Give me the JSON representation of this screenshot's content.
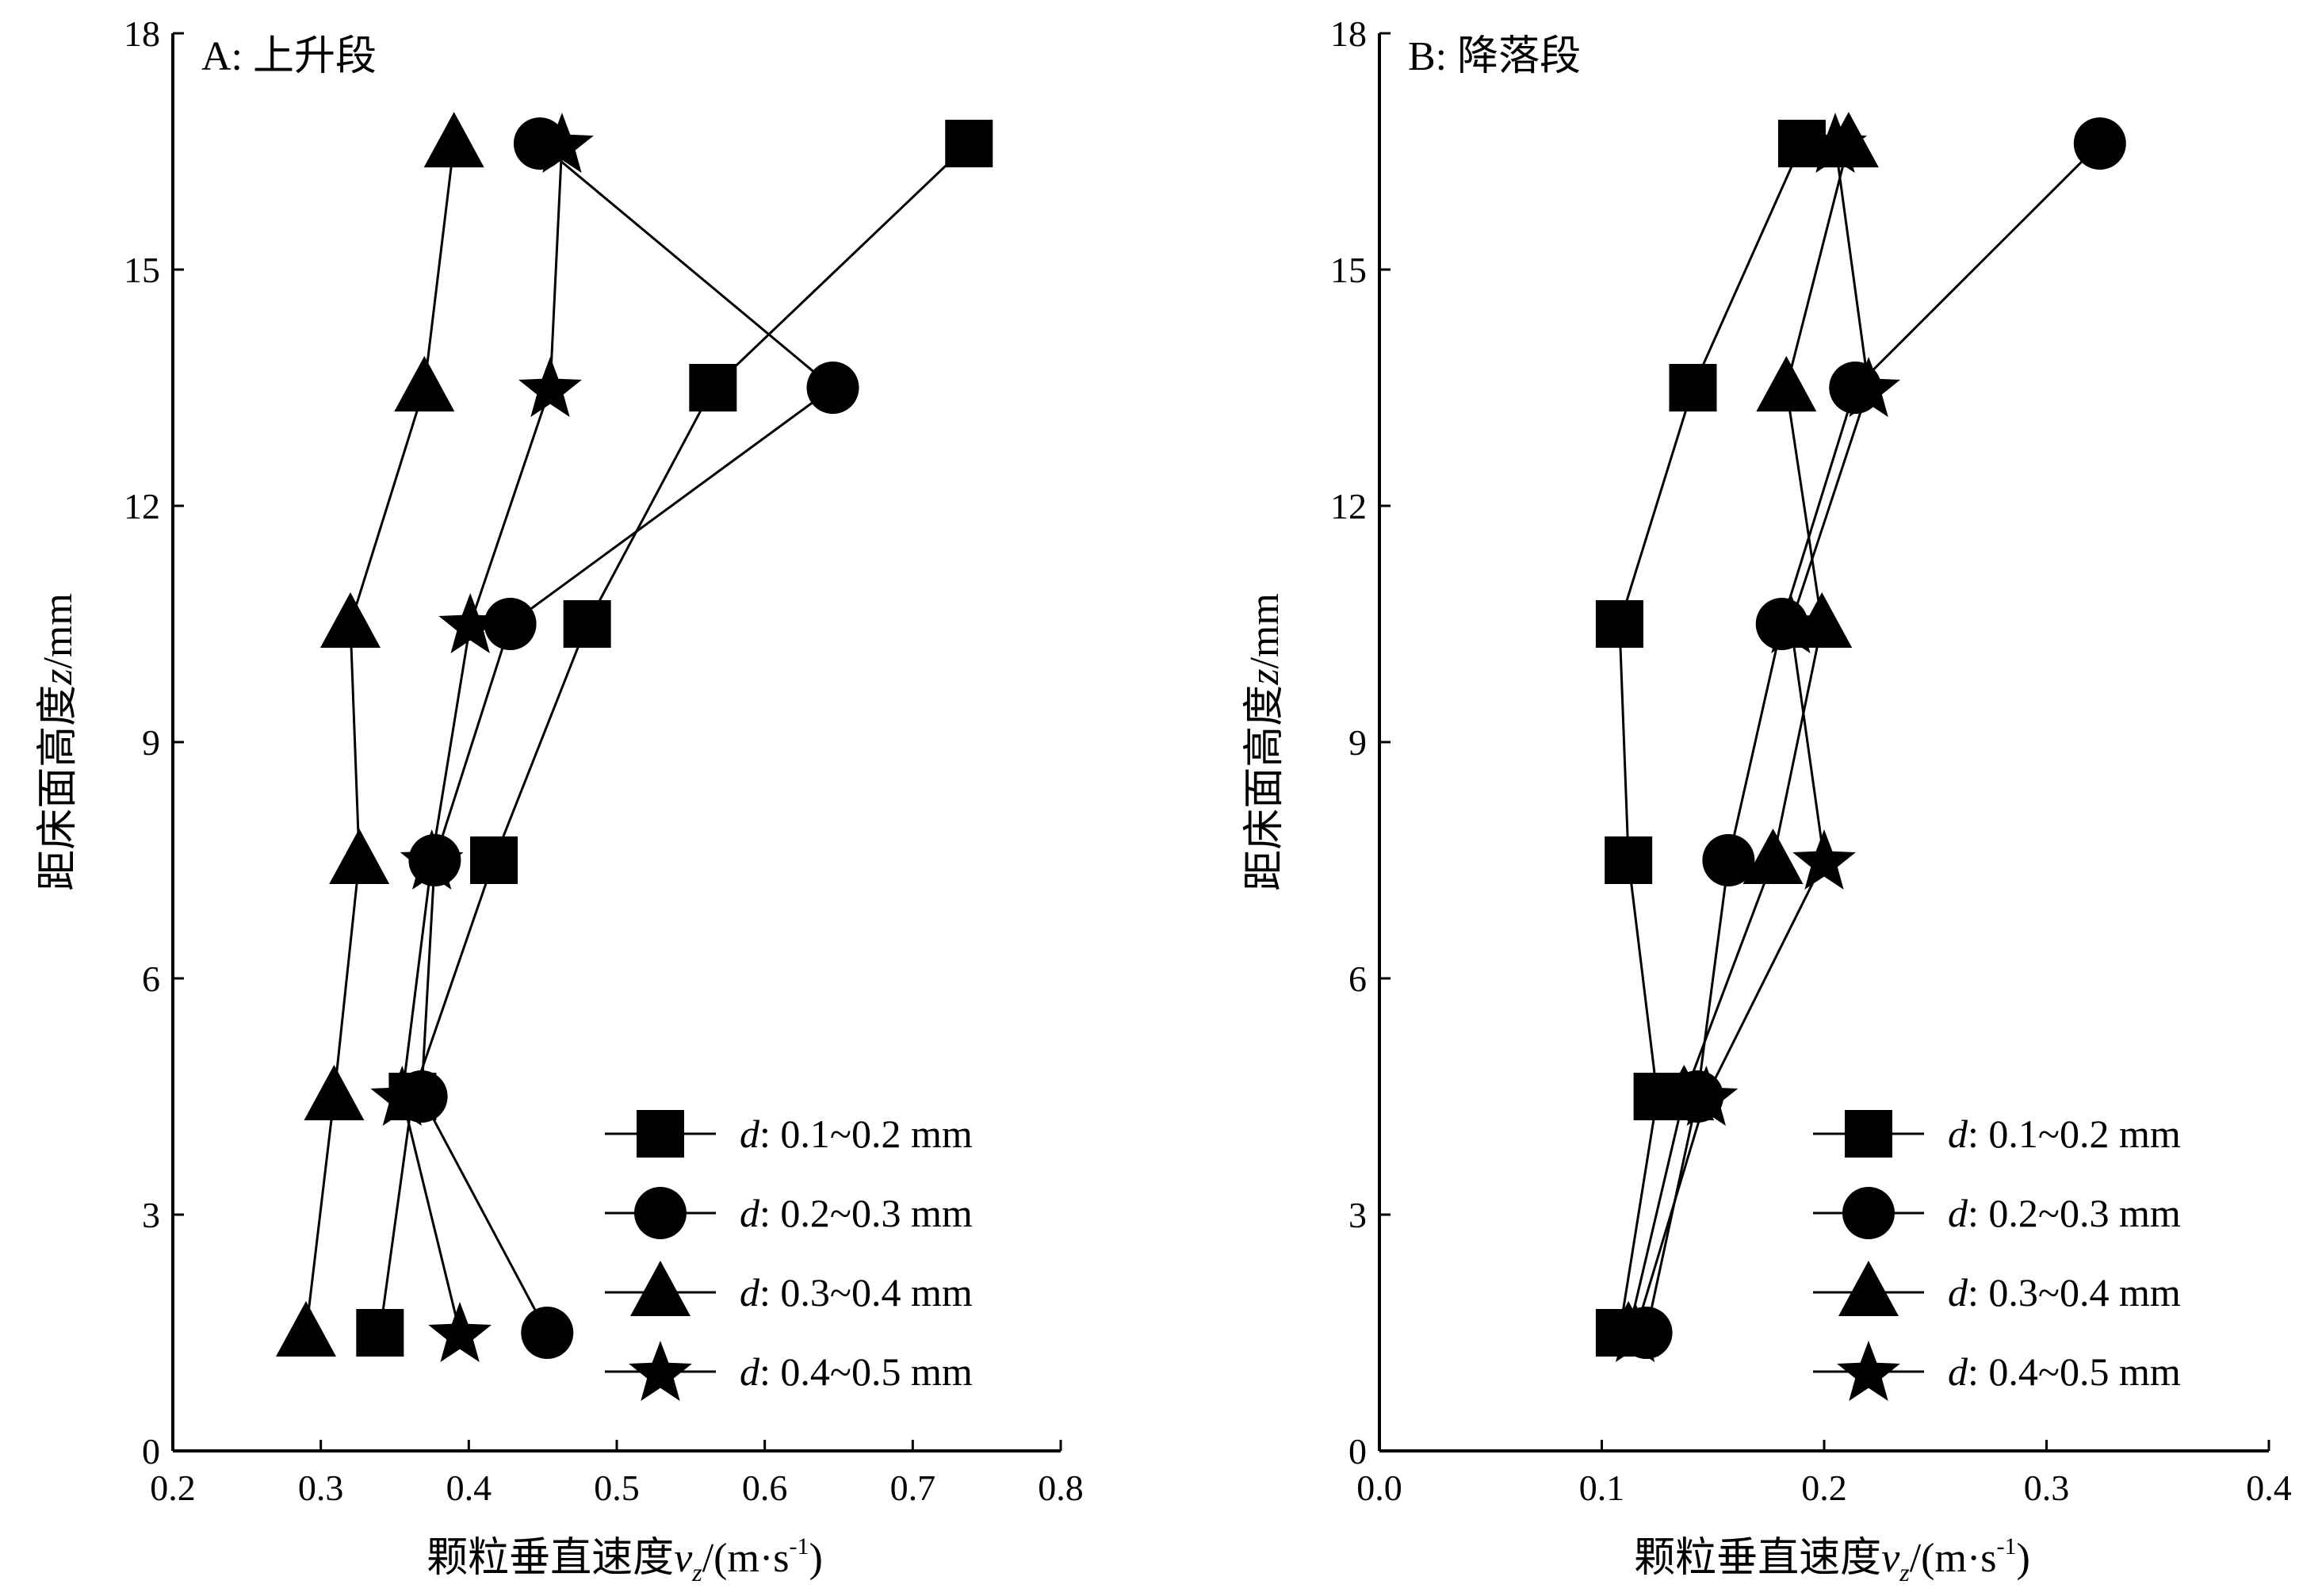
{
  "chart_data": [
    {
      "type": "line",
      "panel_title": "A: 上升段",
      "xlabel": "颗粒垂直速度v_z/(m·s⁻¹)",
      "xlabel_main": "颗粒垂直速度",
      "xlabel_var": "v",
      "xlabel_sub": "z",
      "xlabel_unit": "/(m·s",
      "xlabel_sup": "-1",
      "xlabel_close": ")",
      "ylabel": "距床面高度z/mm",
      "ylabel_main": "距床面高度",
      "ylabel_var": "z",
      "ylabel_unit": "/mm",
      "xlim": [
        0.2,
        0.8
      ],
      "ylim": [
        0,
        18
      ],
      "xticks": [
        "0.2",
        "0.3",
        "0.4",
        "0.5",
        "0.6",
        "0.7",
        "0.8"
      ],
      "yticks": [
        "0",
        "3",
        "6",
        "9",
        "12",
        "15",
        "18"
      ],
      "legend_position": "bottom-right",
      "series": [
        {
          "name": "d: 0.1~0.2 mm",
          "legend_var": "d",
          "legend_text": ": 0.1~0.2 mm",
          "marker": "square",
          "points": [
            [
              0.34,
              1.5
            ],
            [
              0.362,
              4.5
            ],
            [
              0.417,
              7.5
            ],
            [
              0.48,
              10.5
            ],
            [
              0.565,
              13.5
            ],
            [
              0.738,
              16.6
            ]
          ]
        },
        {
          "name": "d: 0.2~0.3 mm",
          "legend_var": "d",
          "legend_text": ": 0.2~0.3 mm",
          "marker": "circle",
          "points": [
            [
              0.453,
              1.5
            ],
            [
              0.368,
              4.5
            ],
            [
              0.377,
              7.5
            ],
            [
              0.428,
              10.5
            ],
            [
              0.646,
              13.5
            ],
            [
              0.448,
              16.6
            ]
          ]
        },
        {
          "name": "d: 0.3~0.4 mm",
          "legend_var": "d",
          "legend_text": ": 0.3~0.4 mm",
          "marker": "triangle",
          "points": [
            [
              0.29,
              1.5
            ],
            [
              0.309,
              4.5
            ],
            [
              0.326,
              7.5
            ],
            [
              0.32,
              10.5
            ],
            [
              0.37,
              13.5
            ],
            [
              0.39,
              16.6
            ]
          ]
        },
        {
          "name": "d: 0.4~0.5 mm",
          "legend_var": "d",
          "legend_text": ": 0.4~0.5 mm",
          "marker": "star",
          "points": [
            [
              0.394,
              1.5
            ],
            [
              0.355,
              4.5
            ],
            [
              0.375,
              7.5
            ],
            [
              0.401,
              10.5
            ],
            [
              0.455,
              13.5
            ],
            [
              0.463,
              16.6
            ]
          ]
        }
      ]
    },
    {
      "type": "line",
      "panel_title": "B: 降落段",
      "xlabel": "颗粒垂直速度v_z/(m·s⁻¹)",
      "xlabel_main": "颗粒垂直速度",
      "xlabel_var": "v",
      "xlabel_sub": "z",
      "xlabel_unit": "/(m·s",
      "xlabel_sup": "-1",
      "xlabel_close": ")",
      "ylabel": "距床面高度z/mm",
      "ylabel_main": "距床面高度",
      "ylabel_var": "z",
      "ylabel_unit": "/mm",
      "xlim": [
        0.0,
        0.4
      ],
      "ylim": [
        0,
        18
      ],
      "xticks": [
        "0.0",
        "0.1",
        "0.2",
        "0.3",
        "0.4"
      ],
      "yticks": [
        "0",
        "3",
        "6",
        "9",
        "12",
        "15",
        "18"
      ],
      "legend_position": "bottom-right",
      "series": [
        {
          "name": "d: 0.1~0.2 mm",
          "legend_var": "d",
          "legend_text": ": 0.1~0.2 mm",
          "marker": "square",
          "points": [
            [
              0.108,
              1.5
            ],
            [
              0.125,
              4.5
            ],
            [
              0.112,
              7.5
            ],
            [
              0.108,
              10.5
            ],
            [
              0.141,
              13.5
            ],
            [
              0.19,
              16.6
            ]
          ]
        },
        {
          "name": "d: 0.2~0.3 mm",
          "legend_var": "d",
          "legend_text": ": 0.2~0.3 mm",
          "marker": "circle",
          "points": [
            [
              0.12,
              1.5
            ],
            [
              0.143,
              4.5
            ],
            [
              0.157,
              7.5
            ],
            [
              0.181,
              10.5
            ],
            [
              0.214,
              13.5
            ],
            [
              0.324,
              16.6
            ]
          ]
        },
        {
          "name": "d: 0.3~0.4 mm",
          "legend_var": "d",
          "legend_text": ": 0.3~0.4 mm",
          "marker": "triangle",
          "points": [
            [
              0.112,
              1.5
            ],
            [
              0.137,
              4.5
            ],
            [
              0.177,
              7.5
            ],
            [
              0.199,
              10.5
            ],
            [
              0.183,
              13.5
            ],
            [
              0.211,
              16.6
            ]
          ]
        },
        {
          "name": "d: 0.4~0.5 mm",
          "legend_var": "d",
          "legend_text": ": 0.4~0.5 mm",
          "marker": "star",
          "points": [
            [
              0.115,
              1.5
            ],
            [
              0.147,
              4.5
            ],
            [
              0.2,
              7.5
            ],
            [
              0.185,
              10.5
            ],
            [
              0.22,
              13.5
            ],
            [
              0.205,
              16.6
            ]
          ]
        }
      ]
    }
  ]
}
